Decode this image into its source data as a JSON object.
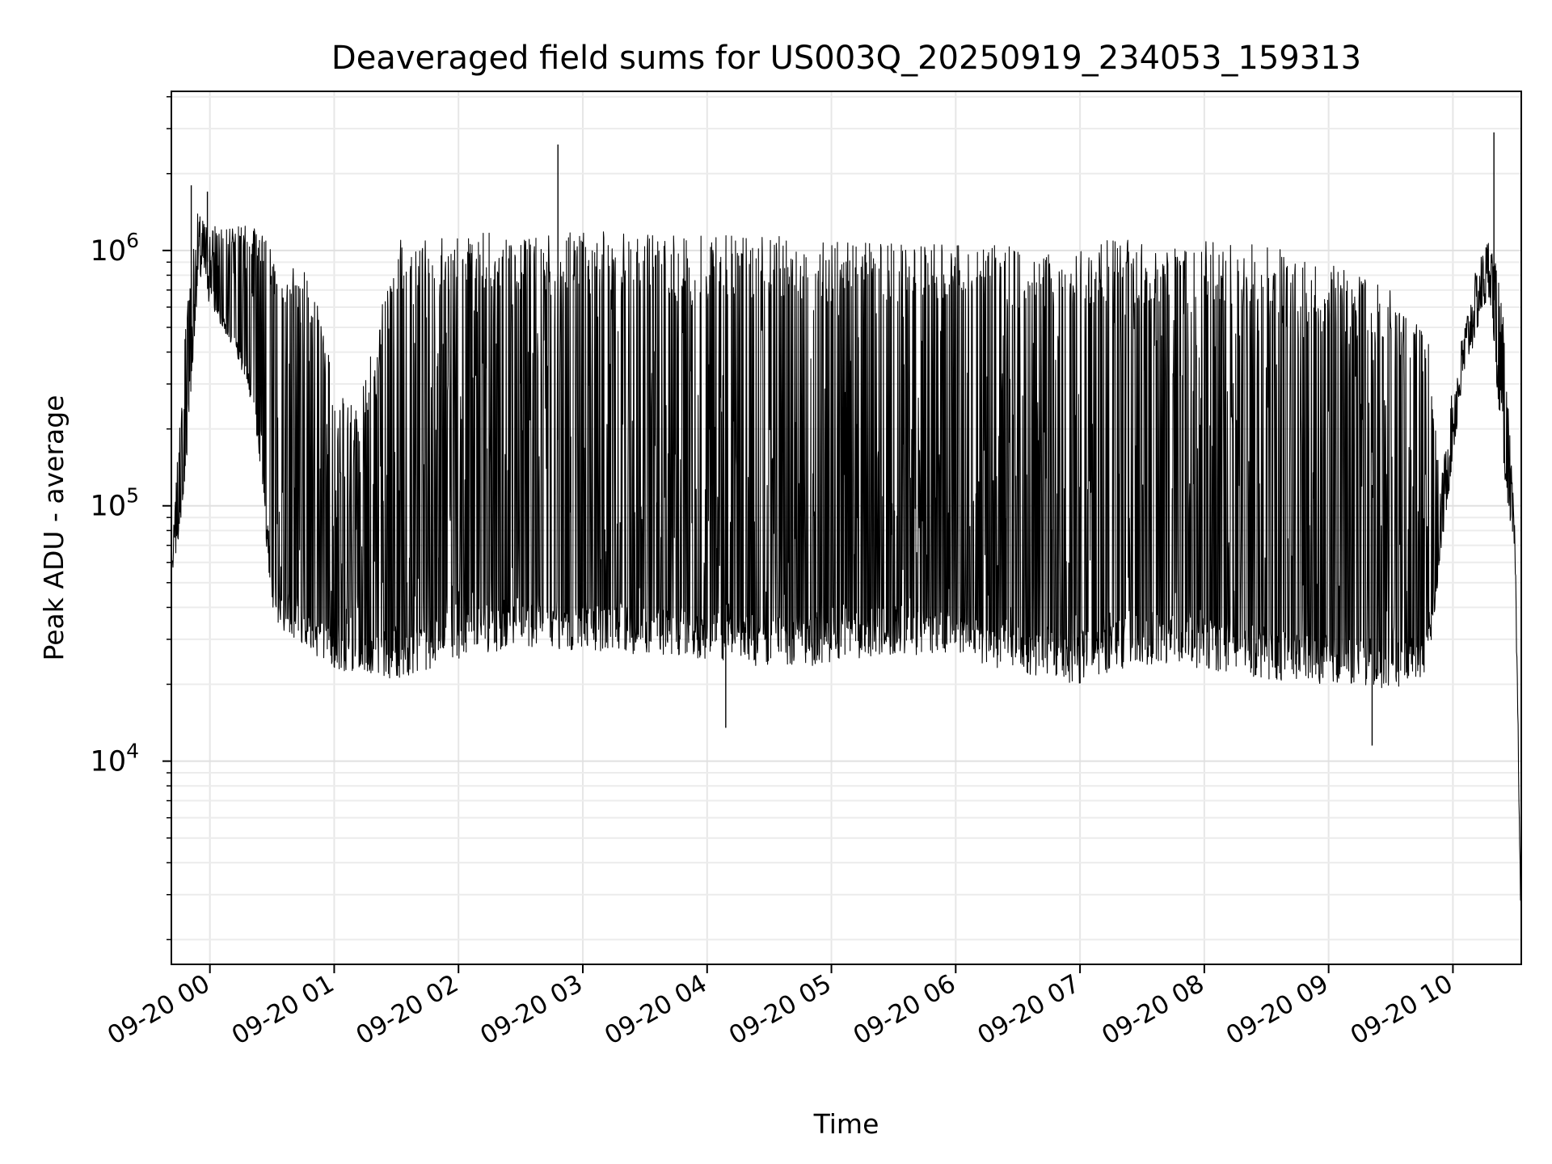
{
  "chart_data": {
    "type": "line",
    "title": "Deaveraged field sums for US003Q_20250919_234053_159313",
    "xlabel": "Time",
    "ylabel": "Peak ADU - average",
    "yscale": "log",
    "ylim": [
      1600,
      4200000
    ],
    "xlim": [
      -0.31,
      10.55
    ],
    "x_unit": "hours after 2025-09-20 00:00",
    "grid": true,
    "x_ticks": [
      {
        "value": 0,
        "label": "09-20 00"
      },
      {
        "value": 1,
        "label": "09-20 01"
      },
      {
        "value": 2,
        "label": "09-20 02"
      },
      {
        "value": 3,
        "label": "09-20 03"
      },
      {
        "value": 4,
        "label": "09-20 04"
      },
      {
        "value": 5,
        "label": "09-20 05"
      },
      {
        "value": 6,
        "label": "09-20 06"
      },
      {
        "value": 7,
        "label": "09-20 07"
      },
      {
        "value": 8,
        "label": "09-20 08"
      },
      {
        "value": 9,
        "label": "09-20 09"
      },
      {
        "value": 10,
        "label": "09-20 10"
      }
    ],
    "y_ticks": [
      {
        "value": 10000,
        "base": "10",
        "exp": "4"
      },
      {
        "value": 100000,
        "base": "10",
        "exp": "5"
      },
      {
        "value": 1000000,
        "base": "10",
        "exp": "6"
      }
    ],
    "series": [
      {
        "name": "field sums",
        "color": "#000000",
        "envelope": {
          "x": [
            -0.3,
            -0.2,
            -0.1,
            0.0,
            0.1,
            0.2,
            0.3,
            0.4,
            0.5,
            0.6,
            0.7,
            0.8,
            0.9,
            1.0,
            1.2,
            1.5,
            2.0,
            2.5,
            3.0,
            3.5,
            4.0,
            4.5,
            5.0,
            5.5,
            6.0,
            6.5,
            7.0,
            7.5,
            8.0,
            8.5,
            9.0,
            9.5,
            9.8,
            9.9,
            10.0,
            10.1,
            10.2,
            10.3,
            10.4,
            10.5,
            10.55
          ],
          "low": [
            50000,
            120000,
            700000,
            600000,
            500000,
            400000,
            300000,
            150000,
            38000,
            32000,
            30000,
            27000,
            25000,
            23000,
            22000,
            21000,
            25000,
            28000,
            27000,
            26000,
            25000,
            23000,
            24000,
            26000,
            26000,
            22000,
            20000,
            24000,
            23000,
            21000,
            20000,
            19000,
            22000,
            60000,
            150000,
            320000,
            480000,
            650000,
            150000,
            60000,
            1800
          ],
          "high": [
            70000,
            500000,
            1400000,
            1300000,
            1200000,
            1250000,
            1250000,
            1200000,
            1100000,
            900000,
            850000,
            800000,
            600000,
            300000,
            250000,
            1100000,
            1150000,
            1200000,
            1200000,
            1150000,
            1150000,
            1150000,
            1100000,
            1100000,
            1050000,
            1050000,
            1100000,
            1100000,
            1100000,
            1050000,
            900000,
            700000,
            450000,
            120000,
            300000,
            550000,
            900000,
            1200000,
            600000,
            80000,
            2500
          ]
        },
        "spikes": [
          {
            "x": -0.15,
            "y": 1800000
          },
          {
            "x": -0.02,
            "y": 1700000
          },
          {
            "x": 2.8,
            "y": 2600000
          },
          {
            "x": 10.33,
            "y": 2900000
          },
          {
            "x": 9.35,
            "y": 11500
          },
          {
            "x": 4.15,
            "y": 13500
          }
        ]
      }
    ]
  }
}
